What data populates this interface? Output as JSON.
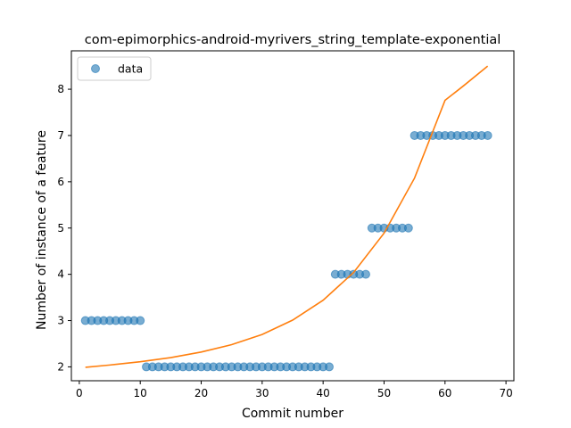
{
  "chart_data": {
    "type": "scatter",
    "title": "com-epimorphics-android-myrivers_string_template-exponential",
    "xlabel": "Commit number",
    "ylabel": "Number of instance of a feature",
    "xlim": [
      -1.3,
      71.3
    ],
    "ylim": [
      1.7,
      8.83
    ],
    "xticks": [
      0,
      10,
      20,
      30,
      40,
      50,
      60,
      70
    ],
    "yticks": [
      2,
      3,
      4,
      5,
      6,
      7,
      8
    ],
    "grid": false,
    "legend_position": "top-left",
    "colors": {
      "data": "#1f77b4",
      "fit": "#ff7f0e"
    },
    "series": [
      {
        "name": "data",
        "kind": "scatter",
        "x": [
          1,
          2,
          3,
          4,
          5,
          6,
          7,
          8,
          9,
          10,
          11,
          12,
          13,
          14,
          15,
          16,
          17,
          18,
          19,
          20,
          21,
          22,
          23,
          24,
          25,
          26,
          27,
          28,
          29,
          30,
          31,
          32,
          33,
          34,
          35,
          36,
          37,
          38,
          39,
          40,
          41,
          42,
          43,
          44,
          45,
          46,
          47,
          48,
          49,
          50,
          51,
          52,
          53,
          54,
          55,
          56,
          57,
          58,
          59,
          60,
          61,
          62,
          63,
          64,
          65,
          66,
          67
        ],
        "y": [
          3,
          3,
          3,
          3,
          3,
          3,
          3,
          3,
          3,
          3,
          2,
          2,
          2,
          2,
          2,
          2,
          2,
          2,
          2,
          2,
          2,
          2,
          2,
          2,
          2,
          2,
          2,
          2,
          2,
          2,
          2,
          2,
          2,
          2,
          2,
          2,
          2,
          2,
          2,
          2,
          2,
          4,
          4,
          4,
          4,
          4,
          4,
          5,
          5,
          5,
          5,
          5,
          5,
          5,
          7,
          7,
          7,
          7,
          7,
          7,
          7,
          7,
          7,
          7,
          7,
          7,
          7
        ]
      },
      {
        "kind": "line",
        "x": [
          1,
          5,
          10,
          15,
          20,
          25,
          30,
          35,
          40,
          45,
          50,
          55,
          60,
          63,
          67
        ],
        "y": [
          1.99,
          2.04,
          2.11,
          2.2,
          2.32,
          2.48,
          2.7,
          3.01,
          3.44,
          4.04,
          4.89,
          6.08,
          7.76,
          8.07,
          8.5
        ]
      }
    ]
  }
}
